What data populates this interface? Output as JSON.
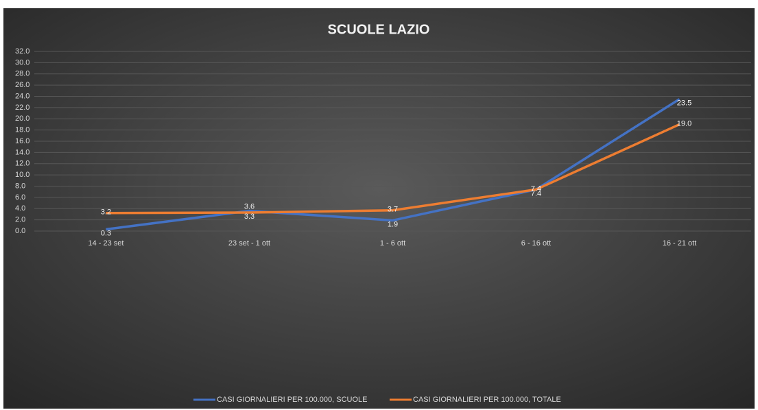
{
  "chart_data": {
    "type": "line",
    "title": "SCUOLE LAZIO",
    "categories": [
      "14 - 23 set",
      "23 set - 1 ott",
      "1 - 6 ott",
      "6 - 16 ott",
      "16 - 21 ott"
    ],
    "series": [
      {
        "name": "CASI GIORNALIERI PER 100.000, SCUOLE",
        "color": "#4472c4",
        "values": [
          0.3,
          3.6,
          1.9,
          7.4,
          23.5
        ],
        "value_labels": [
          "0.3",
          "3.6",
          "1.9",
          "7.4",
          "23.5"
        ]
      },
      {
        "name": "CASI GIORNALIERI PER 100.000, TOTALE",
        "color": "#ed7d31",
        "values": [
          3.2,
          3.3,
          3.7,
          7.4,
          19.0
        ],
        "value_labels": [
          "3.2",
          "3.3",
          "3.7",
          "7.4",
          "19.0"
        ]
      }
    ],
    "ylim": [
      0,
      32
    ],
    "yticks": [
      {
        "value": 0,
        "label": "0.0"
      },
      {
        "value": 2,
        "label": "2.0"
      },
      {
        "value": 4,
        "label": "4.0"
      },
      {
        "value": 6,
        "label": "6.0"
      },
      {
        "value": 8,
        "label": "8.0"
      },
      {
        "value": 10,
        "label": "10.0"
      },
      {
        "value": 12,
        "label": "12.0"
      },
      {
        "value": 14,
        "label": "14.0"
      },
      {
        "value": 16,
        "label": "16.0"
      },
      {
        "value": 18,
        "label": "18.0"
      },
      {
        "value": 20,
        "label": "20.0"
      },
      {
        "value": 22,
        "label": "22.0"
      },
      {
        "value": 24,
        "label": "24.0"
      },
      {
        "value": 26,
        "label": "26.0"
      },
      {
        "value": 28,
        "label": "28.0"
      },
      {
        "value": 30,
        "label": "30.0"
      },
      {
        "value": 32,
        "label": "32.0"
      }
    ],
    "grid": true,
    "legend": "bottom"
  }
}
